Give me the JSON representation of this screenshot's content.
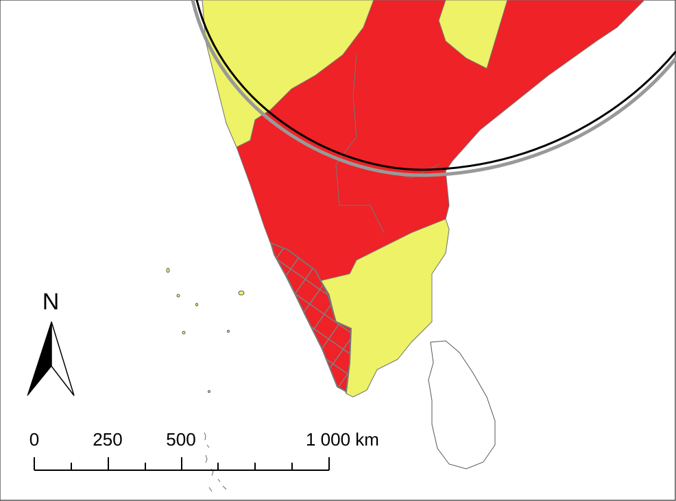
{
  "north_label": "N",
  "scale_bar": {
    "labels": [
      "0",
      "250",
      "500",
      "1 000 km"
    ]
  }
}
